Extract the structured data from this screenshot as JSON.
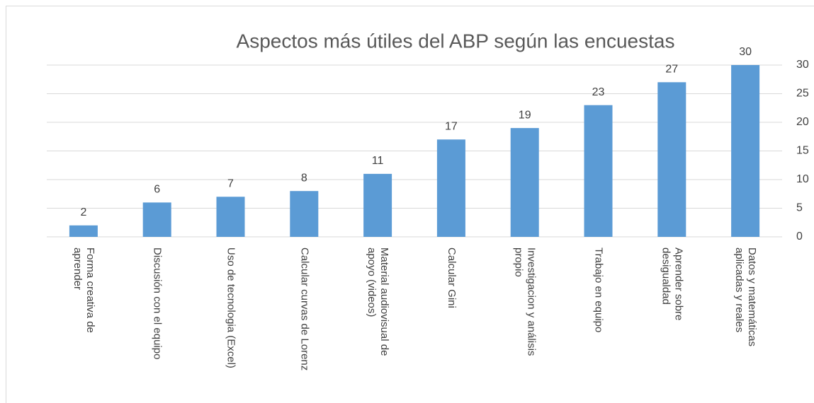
{
  "chart_data": {
    "type": "bar",
    "title": "Aspectos más útiles del ABP según las encuestas",
    "categories": [
      "Forma creativa de aprender",
      "Discusión con el equipo",
      "Uso de tecnologia (Excel)",
      "Calcular curvas de Lorenz",
      "Material audiovisual de apoyo (videos)",
      "Calcular Gini",
      "Investigacion y análisis propio",
      "Trabajo en equipo",
      "Aprender sobre desigualdad",
      "Datos y matemáticas aplicadas y reales"
    ],
    "values": [
      2,
      6,
      7,
      8,
      11,
      17,
      19,
      23,
      27,
      30
    ],
    "color": "#5b9bd5",
    "ylim": [
      0,
      30
    ],
    "yticks": [
      0,
      5,
      10,
      15,
      20,
      25,
      30
    ],
    "y_axis_side": "right",
    "grid": true
  }
}
